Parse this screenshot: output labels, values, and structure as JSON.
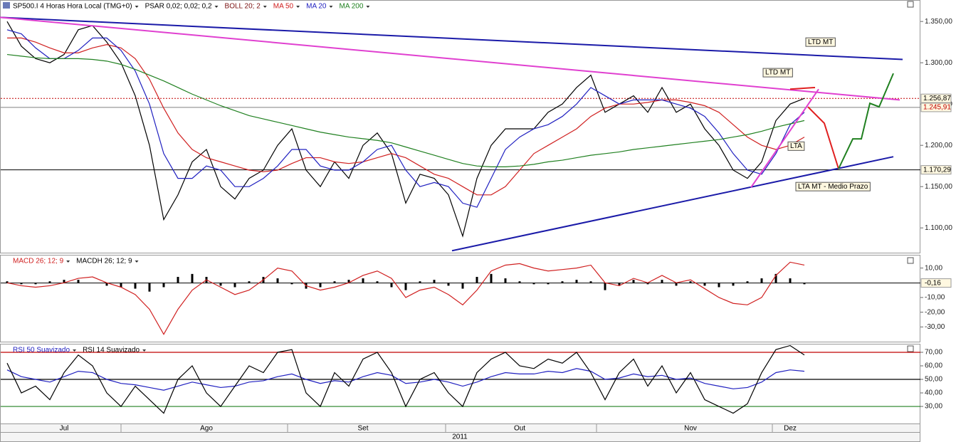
{
  "x_axis": {
    "categories": [
      null,
      null,
      null,
      null,
      "Jul",
      null,
      null,
      null,
      null,
      null,
      null,
      null,
      null,
      null,
      "Ago",
      null,
      null,
      null,
      null,
      null,
      null,
      null,
      null,
      null,
      null,
      "Set",
      null,
      null,
      null,
      null,
      null,
      null,
      null,
      null,
      null,
      null,
      "Out",
      null,
      null,
      null,
      null,
      null,
      null,
      null,
      null,
      null,
      null,
      null,
      "Nov",
      null,
      null,
      null,
      null,
      null,
      null,
      "Dez",
      null
    ],
    "year": "2011"
  },
  "chart_data": [
    {
      "type": "line",
      "title": "SP500.I 4 Horas Hora Local (TMG+0)",
      "indicators": [
        {
          "name": "PSAR 0,02; 0,02; 0,2",
          "color": "#000000"
        },
        {
          "name": "BOLL 20; 2",
          "color": "#7a1010"
        }
      ],
      "ylim": [
        1070,
        1376
      ],
      "yticks": [
        {
          "value": 1350,
          "label": "1.350,00"
        },
        {
          "value": 1300,
          "label": "1.300,00"
        },
        {
          "value": 1250,
          "label": "1.250,00"
        },
        {
          "value": 1200,
          "label": "1.200,00"
        },
        {
          "value": 1150,
          "label": "1.150,00"
        },
        {
          "value": 1100,
          "label": "1.100,00"
        }
      ],
      "price": {
        "color": "#000000",
        "values": [
          1350,
          1320,
          1305,
          1300,
          1310,
          1340,
          1345,
          1325,
          1300,
          1260,
          1200,
          1110,
          1140,
          1180,
          1195,
          1150,
          1135,
          1160,
          1170,
          1200,
          1220,
          1170,
          1150,
          1180,
          1160,
          1200,
          1215,
          1190,
          1130,
          1165,
          1160,
          1140,
          1090,
          1160,
          1200,
          1220,
          1220,
          1220,
          1240,
          1250,
          1270,
          1285,
          1240,
          1250,
          1260,
          1240,
          1270,
          1240,
          1250,
          1220,
          1200,
          1170,
          1160,
          1180,
          1230,
          1250,
          1256.87
        ]
      },
      "series": [
        {
          "name": "MA 50",
          "color": "#d02020",
          "values": [
            1330,
            1330,
            1325,
            1318,
            1312,
            1312,
            1318,
            1322,
            1318,
            1305,
            1280,
            1245,
            1215,
            1195,
            1185,
            1180,
            1175,
            1170,
            1168,
            1170,
            1178,
            1185,
            1185,
            1180,
            1178,
            1180,
            1185,
            1190,
            1185,
            1175,
            1165,
            1160,
            1150,
            1140,
            1140,
            1150,
            1170,
            1190,
            1200,
            1210,
            1220,
            1235,
            1245,
            1250,
            1250,
            1252,
            1255,
            1255,
            1252,
            1248,
            1240,
            1225,
            1210,
            1200,
            1195,
            1200,
            1210
          ]
        },
        {
          "name": "MA 20",
          "color": "#2020c0",
          "values": [
            1340,
            1335,
            1318,
            1305,
            1305,
            1315,
            1330,
            1330,
            1315,
            1290,
            1250,
            1190,
            1160,
            1160,
            1175,
            1170,
            1150,
            1150,
            1160,
            1175,
            1195,
            1195,
            1175,
            1170,
            1170,
            1180,
            1195,
            1200,
            1170,
            1150,
            1155,
            1150,
            1130,
            1125,
            1160,
            1195,
            1210,
            1220,
            1225,
            1235,
            1250,
            1270,
            1260,
            1250,
            1255,
            1255,
            1255,
            1250,
            1245,
            1235,
            1215,
            1190,
            1170,
            1165,
            1190,
            1225,
            1240
          ]
        },
        {
          "name": "MA 200",
          "color": "#208020",
          "values": [
            1310,
            1308,
            1306,
            1305,
            1305,
            1305,
            1304,
            1302,
            1298,
            1292,
            1285,
            1278,
            1270,
            1262,
            1255,
            1248,
            1242,
            1236,
            1232,
            1228,
            1224,
            1220,
            1216,
            1213,
            1210,
            1208,
            1206,
            1203,
            1198,
            1193,
            1188,
            1183,
            1178,
            1175,
            1174,
            1174,
            1175,
            1177,
            1180,
            1182,
            1185,
            1188,
            1190,
            1192,
            1195,
            1197,
            1199,
            1201,
            1203,
            1205,
            1207,
            1210,
            1213,
            1217,
            1222,
            1226,
            1230
          ]
        }
      ],
      "markers": [
        {
          "value": 1256.87,
          "label": "1.256,87",
          "color": "#c00000"
        },
        {
          "value": 1245.91,
          "label": "1.245,91",
          "color": "#808080"
        },
        {
          "value": 1170.29,
          "label": "1.170,29",
          "color": "#000000"
        }
      ],
      "trendlines": [
        {
          "color": "#1a1aa8",
          "points": [
            [
              -0.5,
              1355
            ],
            [
              62.9,
              1304
            ]
          ]
        },
        {
          "color": "#e040d0",
          "points": [
            [
              -0.5,
              1355
            ],
            [
              62.7,
              1255
            ]
          ]
        },
        {
          "color": "#1a1aa8",
          "points": [
            [
              31.25,
              1072.4
            ],
            [
              62.25,
              1186.2
            ]
          ]
        },
        {
          "color": "#e040d0",
          "points": [
            [
              52.25,
              1149
            ],
            [
              57,
              1268
            ]
          ]
        },
        {
          "color": "#e02020",
          "points": [
            [
              55,
              1268
            ],
            [
              56.75,
              1270
            ]
          ]
        },
        {
          "color": "#e02020",
          "points": [
            [
              56.25,
              1246.6
            ],
            [
              57.4,
              1226.7
            ],
            [
              58.4,
              1171.6
            ]
          ]
        },
        {
          "color": "#208020",
          "points": [
            [
              58.4,
              1171.6
            ],
            [
              59.4,
              1207.8
            ],
            [
              60,
              1207.8
            ],
            [
              60.6,
              1250.9
            ],
            [
              61.25,
              1246.6
            ],
            [
              62.25,
              1287.1
            ]
          ]
        }
      ],
      "annotations": [
        {
          "text": "LTD MT",
          "x": 56.1,
          "y": 1325
        },
        {
          "text": "LTD MT",
          "x": 53.1,
          "y": 1288
        },
        {
          "text": "LTA",
          "x": 54.85,
          "y": 1199
        },
        {
          "text": "LTA MT - Medio Prazo",
          "x": 55.4,
          "y": 1150
        }
      ]
    },
    {
      "type": "line",
      "ylim": [
        -40,
        19
      ],
      "yticks": [
        {
          "value": 10,
          "label": "10,00"
        },
        {
          "value": -10,
          "label": "-10,00"
        },
        {
          "value": -20,
          "label": "-20,00"
        },
        {
          "value": -30,
          "label": "-30,00"
        }
      ],
      "last_value": {
        "value": -0.16,
        "label": "-0,16"
      },
      "series": [
        {
          "name": "MACD 26; 12; 9",
          "color": "#d02020",
          "type": "line",
          "values": [
            0,
            -2,
            -3,
            -2,
            0,
            3,
            4,
            0,
            -3,
            -8,
            -18,
            -35,
            -18,
            -5,
            2,
            -3,
            -8,
            -5,
            2,
            10,
            8,
            -2,
            -5,
            -3,
            0,
            5,
            8,
            3,
            -10,
            -5,
            -3,
            -8,
            -15,
            -5,
            8,
            12,
            13,
            10,
            8,
            9,
            10,
            12,
            0,
            -2,
            3,
            0,
            5,
            0,
            2,
            -4,
            -10,
            -14,
            -15,
            -10,
            5,
            14,
            12
          ]
        },
        {
          "name": "MACDH 26; 12; 9",
          "color": "#000000",
          "type": "bar",
          "values": [
            1,
            -1,
            -1,
            1,
            2,
            2,
            0,
            -2,
            -3,
            -4,
            -6,
            -3,
            4,
            6,
            4,
            -2,
            -3,
            1,
            4,
            3,
            -1,
            -4,
            -3,
            1,
            2,
            3,
            1,
            -3,
            -5,
            1,
            2,
            -2,
            -4,
            4,
            6,
            3,
            1,
            -1,
            -1,
            1,
            2,
            1,
            -5,
            -2,
            2,
            -1,
            2,
            -2,
            1,
            -2,
            -3,
            -2,
            1,
            3,
            6,
            3,
            -1
          ]
        }
      ]
    },
    {
      "type": "line",
      "ylim": [
        17.4,
        76.3
      ],
      "yticks": [
        {
          "value": 70,
          "label": "70,00",
          "line_color": "#c00000"
        },
        {
          "value": 60,
          "label": "60,00"
        },
        {
          "value": 50,
          "label": "50,00",
          "line_color": "#000000"
        },
        {
          "value": 40,
          "label": "40,00"
        },
        {
          "value": 30,
          "label": "30,00",
          "line_color": "#208020"
        }
      ],
      "series": [
        {
          "name": "RSI 50 Suavizado",
          "color": "#2020c0",
          "type": "line",
          "values": [
            57,
            52,
            50,
            48,
            52,
            56,
            55,
            50,
            47,
            46,
            44,
            42,
            45,
            48,
            46,
            44,
            45,
            48,
            49,
            52,
            54,
            50,
            47,
            49,
            48,
            52,
            55,
            53,
            47,
            48,
            50,
            48,
            45,
            48,
            52,
            55,
            54,
            54,
            56,
            55,
            58,
            56,
            50,
            51,
            54,
            52,
            53,
            50,
            51,
            47,
            45,
            43,
            44,
            48,
            55,
            57,
            56
          ]
        },
        {
          "name": "RSI 14 Suavizado",
          "color": "#000000",
          "type": "line",
          "values": [
            62,
            40,
            45,
            35,
            55,
            68,
            60,
            40,
            30,
            45,
            35,
            25,
            50,
            60,
            40,
            30,
            45,
            60,
            55,
            70,
            72,
            40,
            30,
            55,
            45,
            65,
            70,
            55,
            30,
            50,
            55,
            40,
            30,
            55,
            65,
            70,
            60,
            58,
            65,
            62,
            70,
            55,
            35,
            55,
            65,
            45,
            60,
            40,
            55,
            35,
            30,
            25,
            32,
            55,
            72,
            75,
            68
          ]
        }
      ]
    }
  ]
}
